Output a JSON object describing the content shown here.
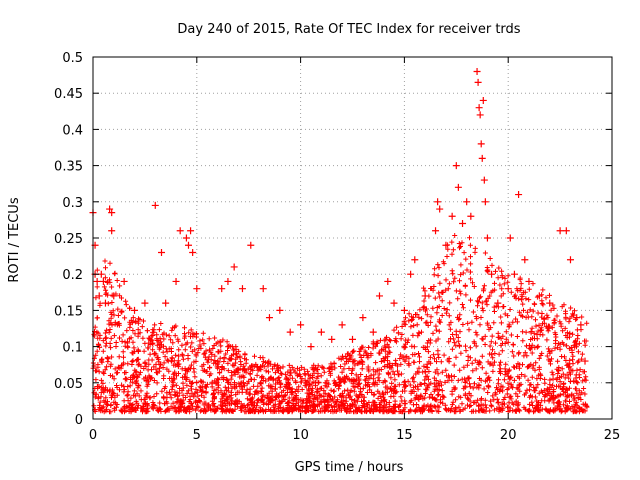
{
  "chart_data": {
    "type": "scatter",
    "title": "Day 240 of 2015, Rate Of TEC Index for receiver trds",
    "xlabel": "GPS time / hours",
    "ylabel": "ROTI / TECUs",
    "xlim": [
      0,
      25
    ],
    "ylim": [
      0,
      0.5
    ],
    "x_ticks": [
      "0",
      "5",
      "10",
      "15",
      "20",
      "25"
    ],
    "y_ticks": [
      "0",
      "0.05",
      "0.1",
      "0.15",
      "0.2",
      "0.25",
      "0.3",
      "0.35",
      "0.4",
      "0.45",
      "0.5"
    ],
    "grid": true,
    "marker": "+",
    "color": "#ff0000",
    "series": [
      {
        "points": [
          [
            0.0,
            0.285
          ],
          [
            0.1,
            0.24
          ],
          [
            0.1,
            0.2
          ],
          [
            0.2,
            0.19
          ],
          [
            0.3,
            0.17
          ],
          [
            0.4,
            0.2
          ],
          [
            0.5,
            0.19
          ],
          [
            0.6,
            0.16
          ],
          [
            0.8,
            0.29
          ],
          [
            0.9,
            0.285
          ],
          [
            0.9,
            0.26
          ],
          [
            1.0,
            0.17
          ],
          [
            1.5,
            0.19
          ],
          [
            2.0,
            0.15
          ],
          [
            2.5,
            0.16
          ],
          [
            3.0,
            0.295
          ],
          [
            3.3,
            0.23
          ],
          [
            3.5,
            0.16
          ],
          [
            4.0,
            0.19
          ],
          [
            4.2,
            0.26
          ],
          [
            4.5,
            0.25
          ],
          [
            4.6,
            0.24
          ],
          [
            4.7,
            0.26
          ],
          [
            4.8,
            0.23
          ],
          [
            5.0,
            0.18
          ],
          [
            6.2,
            0.18
          ],
          [
            6.5,
            0.19
          ],
          [
            6.8,
            0.21
          ],
          [
            7.2,
            0.18
          ],
          [
            7.6,
            0.24
          ],
          [
            8.2,
            0.18
          ],
          [
            8.5,
            0.14
          ],
          [
            9.0,
            0.15
          ],
          [
            9.5,
            0.12
          ],
          [
            10.0,
            0.13
          ],
          [
            10.5,
            0.1
          ],
          [
            11.0,
            0.12
          ],
          [
            11.5,
            0.11
          ],
          [
            12.0,
            0.13
          ],
          [
            12.5,
            0.11
          ],
          [
            13.0,
            0.14
          ],
          [
            13.5,
            0.12
          ],
          [
            13.8,
            0.17
          ],
          [
            14.2,
            0.19
          ],
          [
            14.5,
            0.16
          ],
          [
            15.0,
            0.15
          ],
          [
            15.3,
            0.2
          ],
          [
            15.5,
            0.22
          ],
          [
            16.0,
            0.17
          ],
          [
            16.5,
            0.26
          ],
          [
            16.6,
            0.3
          ],
          [
            16.7,
            0.29
          ],
          [
            17.0,
            0.24
          ],
          [
            17.3,
            0.28
          ],
          [
            17.5,
            0.35
          ],
          [
            17.6,
            0.32
          ],
          [
            17.8,
            0.27
          ],
          [
            18.0,
            0.3
          ],
          [
            18.2,
            0.28
          ],
          [
            18.5,
            0.48
          ],
          [
            18.55,
            0.465
          ],
          [
            18.6,
            0.43
          ],
          [
            18.65,
            0.42
          ],
          [
            18.7,
            0.38
          ],
          [
            18.75,
            0.36
          ],
          [
            18.8,
            0.44
          ],
          [
            18.85,
            0.33
          ],
          [
            18.9,
            0.3
          ],
          [
            19.0,
            0.25
          ],
          [
            19.2,
            0.2
          ],
          [
            19.5,
            0.16
          ],
          [
            20.0,
            0.18
          ],
          [
            20.1,
            0.25
          ],
          [
            20.3,
            0.2
          ],
          [
            20.5,
            0.31
          ],
          [
            20.8,
            0.22
          ],
          [
            21.0,
            0.19
          ],
          [
            21.5,
            0.17
          ],
          [
            22.0,
            0.16
          ],
          [
            22.5,
            0.26
          ],
          [
            22.8,
            0.26
          ],
          [
            23.0,
            0.22
          ],
          [
            23.3,
            0.14
          ],
          [
            23.5,
            0.13
          ],
          [
            23.7,
            0.08
          ]
        ]
      }
    ]
  }
}
